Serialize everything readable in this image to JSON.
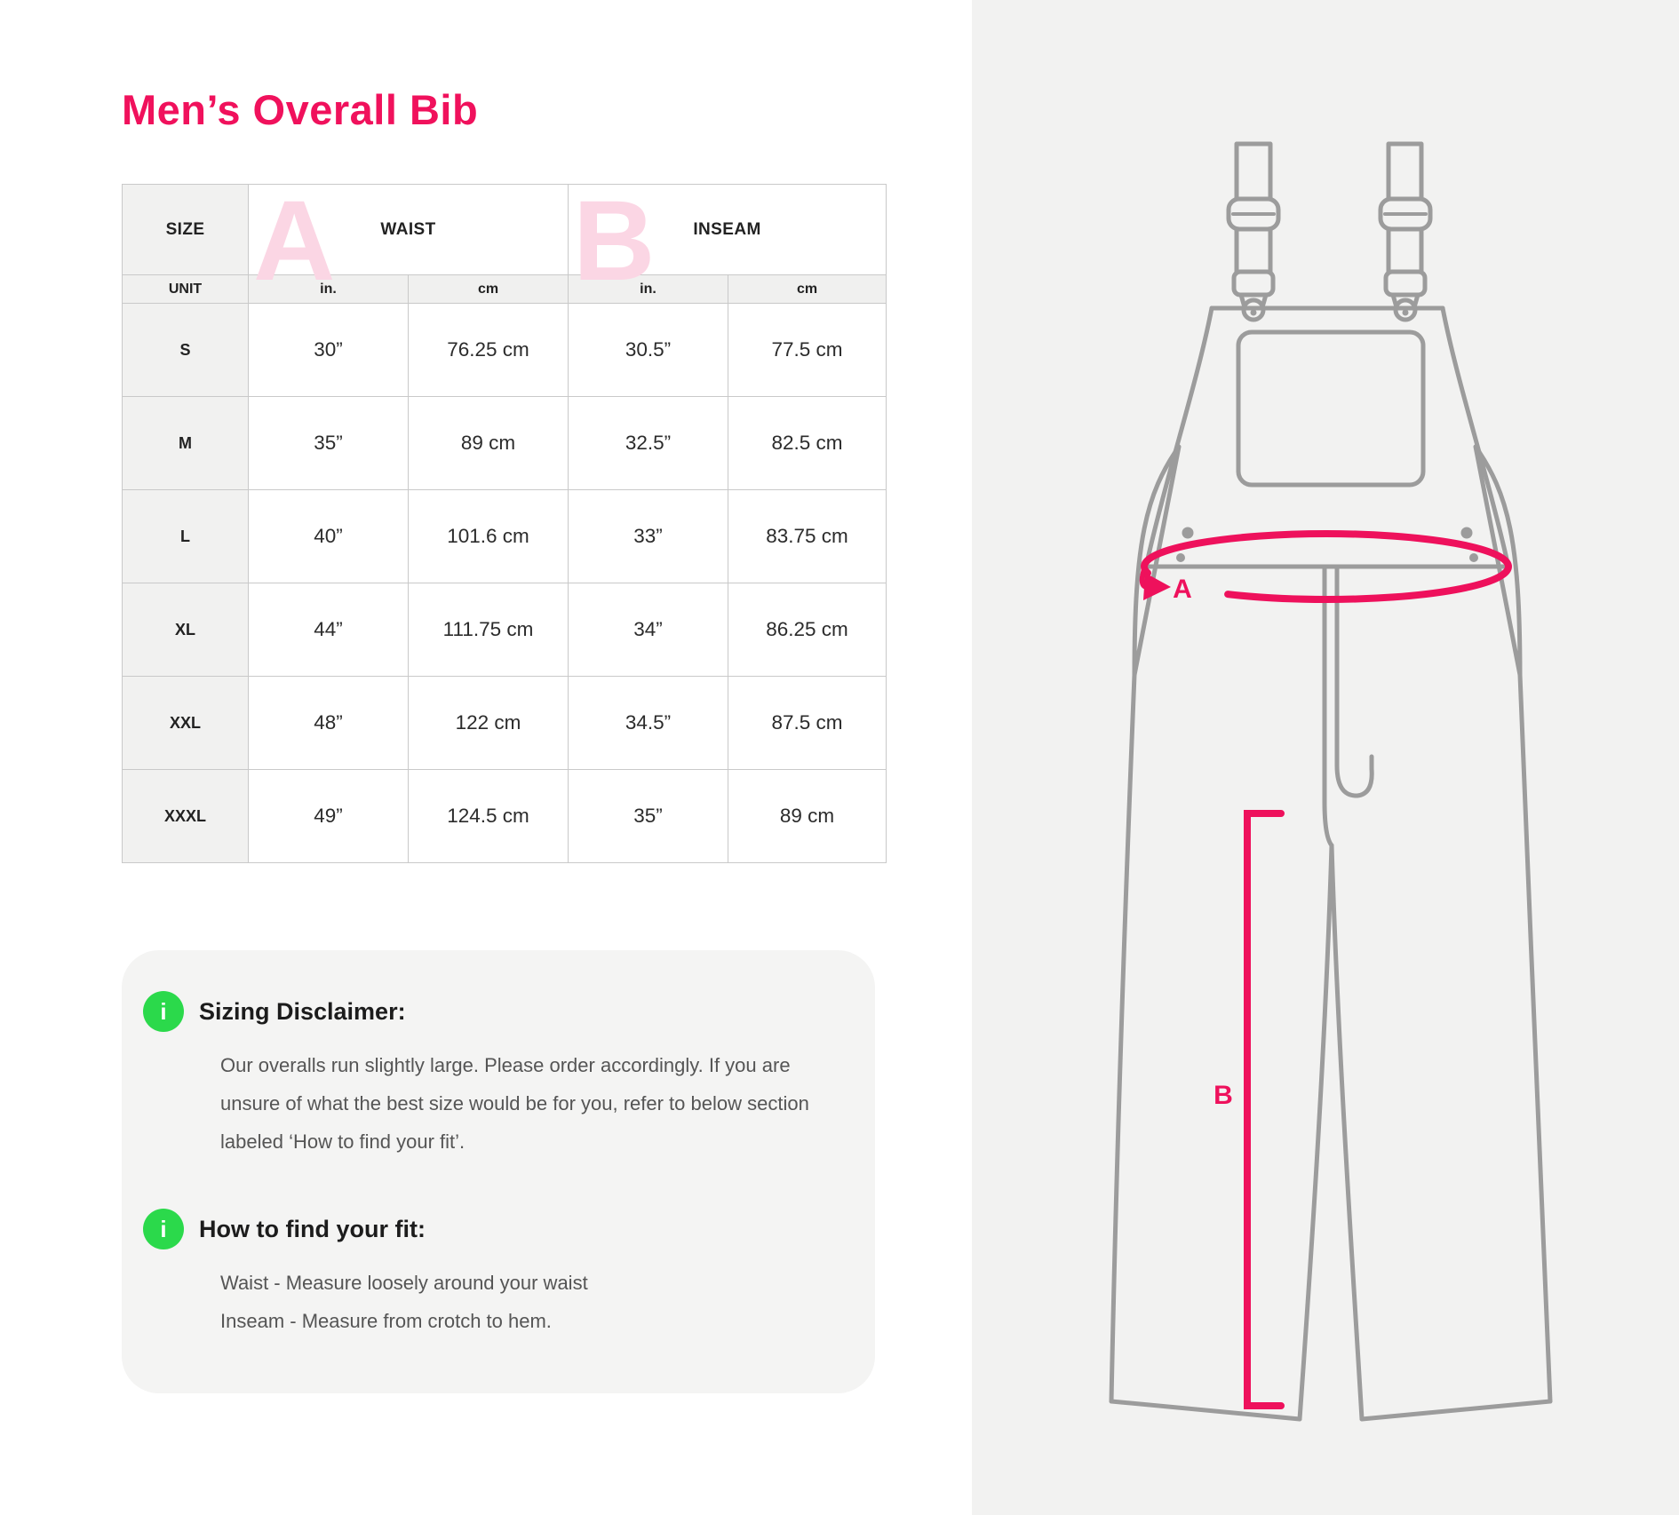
{
  "title": "Men’s Overall Bib",
  "icon_glyph": "i",
  "table": {
    "size_header": "SIZE",
    "waist_header": "WAIST",
    "inseam_header": "INSEAM",
    "watermark_a": "A",
    "watermark_b": "B",
    "unit_header": "UNIT",
    "units": [
      "in.",
      "cm",
      "in.",
      "cm"
    ],
    "rows": [
      {
        "size": "S",
        "waist_in": "30”",
        "waist_cm": "76.25 cm",
        "inseam_in": "30.5”",
        "inseam_cm": "77.5 cm"
      },
      {
        "size": "M",
        "waist_in": "35”",
        "waist_cm": "89 cm",
        "inseam_in": "32.5”",
        "inseam_cm": "82.5 cm"
      },
      {
        "size": "L",
        "waist_in": "40”",
        "waist_cm": "101.6 cm",
        "inseam_in": "33”",
        "inseam_cm": "83.75 cm"
      },
      {
        "size": "XL",
        "waist_in": "44”",
        "waist_cm": "111.75 cm",
        "inseam_in": "34”",
        "inseam_cm": "86.25 cm"
      },
      {
        "size": "XXL",
        "waist_in": "48”",
        "waist_cm": "122 cm",
        "inseam_in": "34.5”",
        "inseam_cm": "87.5 cm"
      },
      {
        "size": "XXXL",
        "waist_in": "49”",
        "waist_cm": "124.5 cm",
        "inseam_in": "35”",
        "inseam_cm": "89 cm"
      }
    ]
  },
  "notes": [
    {
      "title": "Sizing Disclaimer:",
      "lines": [
        "Our overalls run slightly large. Please order accordingly. If you are unsure of what the best size would be for you, refer to below section labeled ‘How to find your fit’."
      ]
    },
    {
      "title": "How to find your fit:",
      "lines": [
        "Waist - Measure loosely around your waist",
        "Inseam - Measure from crotch to hem."
      ]
    }
  ],
  "diagram": {
    "label_a": "A",
    "label_b": "B"
  },
  "colors": {
    "accent_pink": "#ee115c",
    "watermark_pink": "#fbd6e4",
    "info_green": "#2bd94b",
    "line_gray": "#9c9c9c",
    "panel_bg": "#f2f2f1"
  }
}
